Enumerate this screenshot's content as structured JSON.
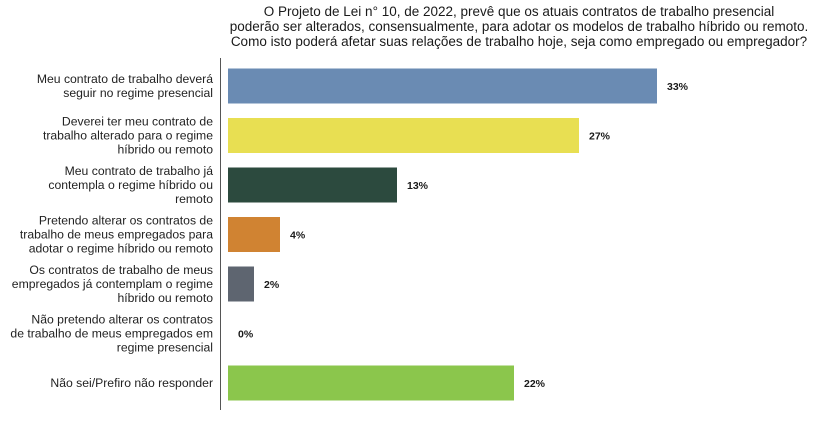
{
  "chart_data": {
    "type": "bar",
    "orientation": "horizontal",
    "title": "O Projeto de Lei n° 10, de 2022, prevê que os atuais contratos de trabalho presencial poderão ser alterados, consensualmente, para adotar os modelos de trabalho híbrido ou remoto. Como isto poderá afetar suas relações de trabalho hoje, seja como empregado ou empregador?",
    "title_lines": [
      "O Projeto de Lei n° 10, de 2022, prevê que os atuais contratos de trabalho presencial",
      "poderão ser alterados, consensualmente, para adotar os modelos de trabalho híbrido ou remoto.",
      "Como isto poderá afetar suas relações de trabalho hoje, seja como empregado ou empregador?"
    ],
    "xlim": [
      0,
      37
    ],
    "grid": false,
    "legend": "none",
    "categories": [
      {
        "label": "Meu contrato de trabalho deverá seguir no regime presencial",
        "lines": [
          "Meu contrato de trabalho deverá",
          "seguir no regime presencial"
        ],
        "value": 33,
        "display": "33%",
        "color": "#6a8bb3"
      },
      {
        "label": "Deverei ter meu contrato de trabalho alterado para o regime híbrido ou remoto",
        "lines": [
          "Deverei ter meu contrato de",
          "trabalho alterado para o regime",
          "híbrido ou remoto"
        ],
        "value": 27,
        "display": "27%",
        "color": "#e8df52"
      },
      {
        "label": "Meu contrato de trabalho já contempla o regime híbrido ou remoto",
        "lines": [
          "Meu contrato de trabalho já",
          "contempla o regime híbrido ou",
          "remoto"
        ],
        "value": 13,
        "display": "13%",
        "color": "#2c4a3e"
      },
      {
        "label": "Pretendo alterar os contratos de trabalho de meus empregados para adotar o regime híbrido ou remoto",
        "lines": [
          "Pretendo alterar os contratos de",
          "trabalho de meus empregados para",
          "adotar o regime híbrido ou remoto"
        ],
        "value": 4,
        "display": "4%",
        "color": "#d08332"
      },
      {
        "label": "Os contratos de trabalho de meus empregados já contemplam o regime híbrido ou remoto",
        "lines": [
          "Os contratos de trabalho de meus",
          "empregados já contemplam o regime",
          "híbrido ou remoto"
        ],
        "value": 2,
        "display": "2%",
        "color": "#5e6570"
      },
      {
        "label": "Não pretendo alterar os contratos de trabalho de meus empregados em regime presencial",
        "lines": [
          "Não pretendo alterar os contratos",
          "de trabalho de meus empregados em",
          "regime presencial"
        ],
        "value": 0,
        "display": "0%",
        "color": "#8aa4c8"
      },
      {
        "label": "Não sei/Prefiro não responder",
        "lines": [
          "Não sei/Prefiro não responder"
        ],
        "value": 22,
        "display": "22%",
        "color": "#8bc64c"
      }
    ]
  }
}
